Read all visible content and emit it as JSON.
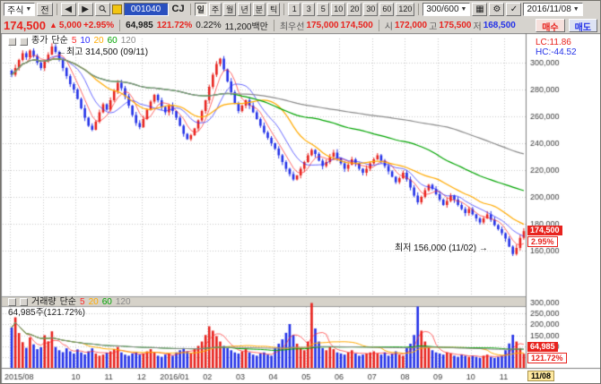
{
  "toolbar": {
    "asset_type": "주식",
    "jeon": "전",
    "code": "001040",
    "stock_name": "CJ",
    "periods": [
      "일",
      "주",
      "월",
      "년",
      "분",
      "틱"
    ],
    "active_period": "일",
    "minutes": [
      "1",
      "3",
      "5",
      "10",
      "20",
      "30",
      "60",
      "120"
    ],
    "bars_select": "300/600",
    "date": "2016/11/08",
    "buy": "매수",
    "sell": "매도"
  },
  "quote": {
    "price": "174,500",
    "change_arrow": "▲",
    "change": "5,000",
    "change_pct": "+2.95%",
    "volume": "64,985",
    "volume_ratio": "121.72%",
    "turnover": "0.22%",
    "value": "11,200백만",
    "best_label": "최우선",
    "best_ask": "175,000",
    "best_bid": "174,500",
    "open_label": "시",
    "open": "172,000",
    "high_label": "고",
    "high": "175,500",
    "low_label": "저",
    "low": "168,500"
  },
  "colors": {
    "up": "#e8231e",
    "down": "#2432e8",
    "ma5": "#ff2a2a",
    "ma10": "#2a2aff",
    "ma20": "#ffaa00",
    "ma60": "#00a400",
    "ma120": "#8a8a8a",
    "tag_date_bg": "#ffe9a0"
  },
  "chart_data": {
    "type": "candlestick+volume",
    "symbol": "CJ",
    "code": "001040",
    "date": "2016/11/08",
    "legend_price": {
      "name": "종가",
      "type": "단순",
      "periods": [
        "5",
        "10",
        "20",
        "60",
        "120"
      ]
    },
    "legend_volume": {
      "name": "거래량",
      "type": "단순",
      "periods": [
        "5",
        "20",
        "60",
        "120"
      ]
    },
    "vol_current": "64,985주(121.72%)",
    "annotations": {
      "high_arrow": "←",
      "high_text": "최고 314,500 (09/11)",
      "low_text": "최저 156,000 (11/02)",
      "low_arrow": "→",
      "lc": "LC:11.86",
      "hc": "HC:-44.52"
    },
    "price_axis": [
      300000,
      280000,
      260000,
      240000,
      220000,
      200000,
      180000,
      160000
    ],
    "volume_axis": [
      300000,
      250000,
      200000,
      150000,
      100000,
      50000
    ],
    "price_range": [
      126000,
      318000
    ],
    "volume_range": [
      0,
      300000
    ],
    "month_ticks": [
      0,
      9,
      18,
      27,
      36,
      45,
      54,
      63,
      72,
      81,
      90,
      99,
      108,
      117,
      126,
      135
    ],
    "month_labels": [
      {
        "label": "2015/08",
        "index": 0
      },
      {
        "label": "10",
        "index": 18
      },
      {
        "label": "11",
        "index": 27
      },
      {
        "label": "12",
        "index": 36
      },
      {
        "label": "2016/01",
        "index": 45
      },
      {
        "label": "02",
        "index": 54
      },
      {
        "label": "03",
        "index": 63
      },
      {
        "label": "04",
        "index": 72
      },
      {
        "label": "05",
        "index": 81
      },
      {
        "label": "06",
        "index": 90
      },
      {
        "label": "07",
        "index": 99
      },
      {
        "label": "08",
        "index": 108
      },
      {
        "label": "09",
        "index": 117
      },
      {
        "label": "10",
        "index": 126
      },
      {
        "label": "11",
        "index": 135
      }
    ],
    "extremes": {
      "high_index": 11,
      "high": 314500,
      "low_index": 137,
      "low": 156000
    },
    "last": {
      "close": 174500,
      "close_str": "174,500",
      "pct_str": "2.95%",
      "volume": 64985,
      "vol_str": "64,985",
      "vol_pct_str": "121.72%"
    },
    "date_tag": "11/08",
    "closes": [
      291000,
      296000,
      302000,
      307000,
      304000,
      309000,
      305000,
      300000,
      296000,
      301000,
      306000,
      312000,
      308000,
      302000,
      296000,
      290000,
      284000,
      280000,
      273000,
      266000,
      259000,
      253000,
      250000,
      256000,
      263000,
      269000,
      265000,
      272000,
      279000,
      285000,
      281000,
      275000,
      268000,
      261000,
      255000,
      252000,
      258000,
      265000,
      271000,
      276000,
      272000,
      267000,
      263000,
      268000,
      264000,
      259000,
      253000,
      247000,
      243000,
      246000,
      251000,
      257000,
      264000,
      272000,
      282000,
      291000,
      299000,
      303000,
      295000,
      286000,
      278000,
      270000,
      264000,
      268000,
      272000,
      268000,
      263000,
      258000,
      253000,
      248000,
      244000,
      240000,
      236000,
      231000,
      226000,
      221000,
      217000,
      213000,
      216000,
      221000,
      226000,
      231000,
      235000,
      232000,
      227000,
      223000,
      226000,
      230000,
      233000,
      229000,
      225000,
      221000,
      224000,
      228000,
      225000,
      221000,
      218000,
      221000,
      225000,
      228000,
      231000,
      227000,
      223000,
      219000,
      215000,
      211000,
      214000,
      218000,
      213000,
      207000,
      201000,
      196000,
      200000,
      205000,
      209000,
      206000,
      202000,
      198000,
      194000,
      197000,
      201000,
      198000,
      194000,
      191000,
      188000,
      191000,
      187000,
      184000,
      181000,
      184000,
      187000,
      183000,
      179000,
      176000,
      173000,
      169000,
      163000,
      157500,
      162000,
      169500,
      174500
    ],
    "volumes": [
      185000,
      232000,
      160000,
      118000,
      92000,
      140000,
      108000,
      86000,
      95000,
      150000,
      122000,
      168000,
      96000,
      81000,
      72000,
      90000,
      76000,
      66000,
      85000,
      71000,
      62000,
      76000,
      90000,
      66000,
      56000,
      61000,
      70000,
      76000,
      86000,
      96000,
      71000,
      61000,
      56000,
      66000,
      71000,
      61000,
      66000,
      76000,
      86000,
      71000,
      56000,
      51000,
      61000,
      66000,
      56000,
      71000,
      81000,
      91000,
      76000,
      66000,
      86000,
      101000,
      121000,
      151000,
      191000,
      171000,
      146000,
      121000,
      101000,
      91000,
      81000,
      71000,
      66000,
      76000,
      86000,
      71000,
      61000,
      56000,
      66000,
      71000,
      61000,
      56000,
      91000,
      111000,
      131000,
      161000,
      201000,
      151000,
      111000,
      91000,
      81000,
      121000,
      298000,
      181000,
      121000,
      91000,
      81000,
      96000,
      86000,
      71000,
      66000,
      61000,
      71000,
      81000,
      66000,
      56000,
      61000,
      66000,
      71000,
      76000,
      66000,
      61000,
      71000,
      56000,
      66000,
      76000,
      61000,
      56000,
      91000,
      111000,
      151000,
      282000,
      171000,
      121000,
      96000,
      81000,
      71000,
      66000,
      61000,
      71000,
      66000,
      56000,
      51000,
      61000,
      56000,
      51000,
      56000,
      51000,
      46000,
      56000,
      61000,
      51000,
      46000,
      51000,
      56000,
      81000,
      112000,
      152000,
      121000,
      91000,
      64985
    ]
  }
}
